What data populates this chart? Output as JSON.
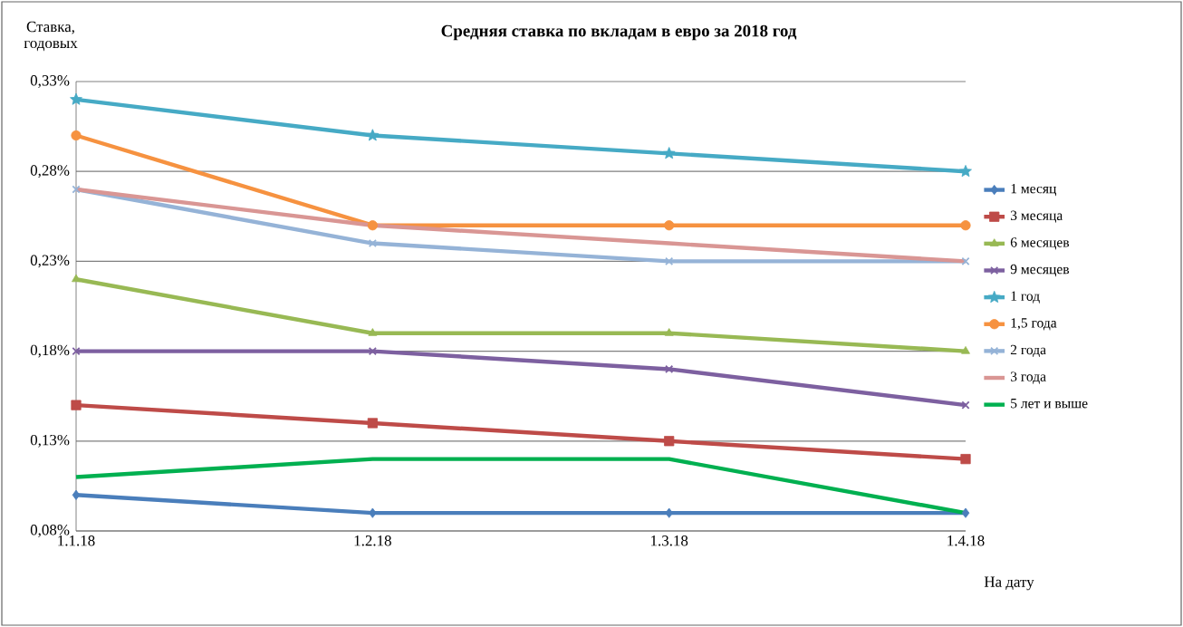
{
  "chart_data": {
    "type": "line",
    "title": "Средняя ставка по вкладам в евро за 2018 год",
    "ylabel": "Ставка, годовых",
    "xlabel": "На дату",
    "categories": [
      "1.1.18",
      "1.2.18",
      "1.3.18",
      "1.4.18"
    ],
    "ylim": [
      0.08,
      0.33
    ],
    "yticks": [
      {
        "value": 0.08,
        "label": "0,08%"
      },
      {
        "value": 0.13,
        "label": "0,13%"
      },
      {
        "value": 0.18,
        "label": "0,18%"
      },
      {
        "value": 0.23,
        "label": "0,23%"
      },
      {
        "value": 0.28,
        "label": "0,28%"
      },
      {
        "value": 0.33,
        "label": "0,33%"
      }
    ],
    "grid": "y",
    "legend": "right",
    "series": [
      {
        "name": "1 месяц",
        "color": "#4a7ebb",
        "marker": "diamond",
        "values": [
          0.1,
          0.09,
          0.09,
          0.09
        ]
      },
      {
        "name": "3 месяца",
        "color": "#be4b48",
        "marker": "square",
        "values": [
          0.15,
          0.14,
          0.13,
          0.12
        ]
      },
      {
        "name": "6 месяцев",
        "color": "#98b954",
        "marker": "triangle",
        "values": [
          0.22,
          0.19,
          0.19,
          0.18
        ]
      },
      {
        "name": "9 месяцев",
        "color": "#7d60a0",
        "marker": "cross",
        "values": [
          0.18,
          0.18,
          0.17,
          0.15
        ]
      },
      {
        "name": "1 год",
        "color": "#46aac5",
        "marker": "star",
        "values": [
          0.32,
          0.3,
          0.29,
          0.28
        ]
      },
      {
        "name": "1,5 года",
        "color": "#f69240",
        "marker": "circle",
        "values": [
          0.3,
          0.25,
          0.25,
          0.25
        ]
      },
      {
        "name": "2 года",
        "color": "#95b3d7",
        "marker": "cross",
        "values": [
          0.27,
          0.24,
          0.23,
          0.23
        ]
      },
      {
        "name": "3 года",
        "color": "#d99694",
        "marker": "none",
        "values": [
          0.27,
          0.25,
          0.24,
          0.23
        ]
      },
      {
        "name": "5 лет и выше",
        "color": "#00b050",
        "marker": "none",
        "values": [
          0.11,
          0.12,
          0.12,
          0.09
        ]
      }
    ]
  }
}
